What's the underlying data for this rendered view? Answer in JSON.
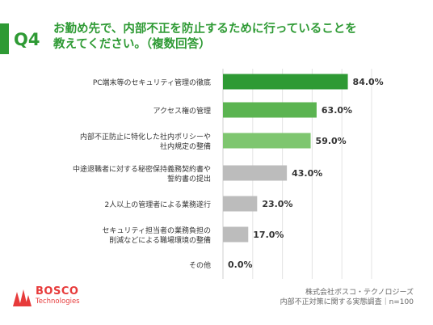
{
  "header": {
    "q_number": "Q4",
    "question_line1": "お勤め先で、内部不正を防止するために行っていることを",
    "question_line2": "教えてください。（複数回答）",
    "accent_color": "#2e9a34"
  },
  "chart_data": {
    "type": "bar",
    "orientation": "horizontal",
    "categories": [
      [
        "PC端末等のセキュリティ管理の徹底"
      ],
      [
        "アクセス権の管理"
      ],
      [
        "内部不正防止に特化した社内ポリシーや",
        "社内規定の整備"
      ],
      [
        "中途退職者に対する秘密保持義務契約書や",
        "誓約書の提出"
      ],
      [
        "2人以上の管理者による業務遂行"
      ],
      [
        "セキュリティ担当者の業務負担の",
        "削減などによる職場環境の整備"
      ],
      [
        "その他"
      ]
    ],
    "values": [
      84.0,
      63.0,
      59.0,
      43.0,
      23.0,
      17.0,
      0.0
    ],
    "value_labels": [
      "84.0%",
      "63.0%",
      "59.0%",
      "43.0%",
      "23.0%",
      "17.0%",
      "0.0%"
    ],
    "bar_colors": [
      "#2e9a34",
      "#5bb451",
      "#7ec66f",
      "#bcbcbc",
      "#bcbcbc",
      "#bcbcbc",
      "#bcbcbc"
    ],
    "xlim": [
      0,
      100
    ],
    "grid": true,
    "gridline_color": "#e3e3e3"
  },
  "logo": {
    "name": "BOSCO",
    "sub": "Technologies",
    "color": "#e73b3b"
  },
  "source": {
    "line1": "株式会社ボスコ・テクノロジーズ",
    "line2": "内部不正対策に関する実態調査｜n=100"
  }
}
